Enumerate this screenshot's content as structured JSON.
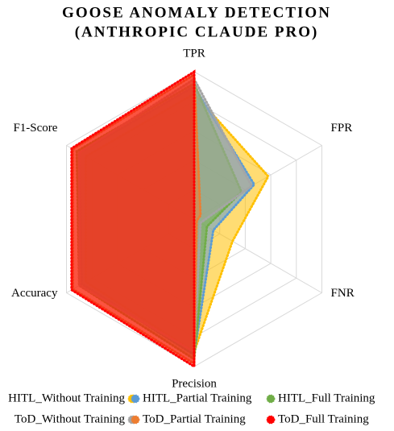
{
  "chart_data": {
    "type": "radar",
    "title": [
      "GOOSE ANOMALY DETECTION",
      "(ANTHROPIC CLAUDE PRO)"
    ],
    "categories": [
      "TPR",
      "FPR",
      "FNR",
      "Precision",
      "Accuracy",
      "F1-Score"
    ],
    "ylim": [
      0,
      1
    ],
    "yticks": [
      0.2,
      0.4,
      0.6,
      0.8,
      1.0
    ],
    "grid": true,
    "legend": "bottom",
    "series": [
      {
        "name": "HITL_Without Training",
        "color": "#ffc000",
        "values": [
          0.85,
          0.58,
          0.3,
          0.9,
          0.85,
          0.85
        ]
      },
      {
        "name": "HITL_Partial Training",
        "color": "#5b9bd5",
        "values": [
          0.9,
          0.47,
          0.15,
          0.92,
          0.88,
          0.9
        ]
      },
      {
        "name": "HITL_Full Training",
        "color": "#70ad47",
        "values": [
          0.92,
          0.37,
          0.1,
          0.95,
          0.9,
          0.92
        ]
      },
      {
        "name": "ToD_Without Training",
        "color": "#a5a5a5",
        "values": [
          0.95,
          0.45,
          0.05,
          0.9,
          0.9,
          0.9
        ]
      },
      {
        "name": "ToD_Partial Training",
        "color": "#ed7d31",
        "values": [
          0.98,
          0.05,
          0.02,
          0.98,
          0.95,
          0.95
        ]
      },
      {
        "name": "ToD_Full Training",
        "color": "#ff0000",
        "values": [
          1.0,
          0,
          0,
          1.0,
          0.96,
          0.96
        ]
      }
    ]
  }
}
